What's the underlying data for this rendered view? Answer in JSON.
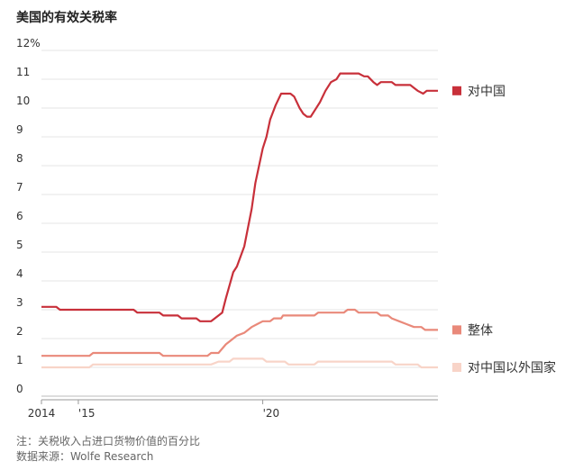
{
  "title": "美国的有效关税率",
  "notes": {
    "line1": "注：关税收入占进口货物价值的百分比",
    "line2": "数据来源：Wolfe Research"
  },
  "chart_data": {
    "type": "line",
    "title": "美国的有效关税率",
    "ylim": [
      0,
      12
    ],
    "xlim": [
      2014.0,
      2024.75
    ],
    "y_ticks": [
      0,
      1,
      2,
      3,
      4,
      5,
      6,
      7,
      8,
      9,
      10,
      11,
      12
    ],
    "y_tick_labels": [
      "0",
      "1",
      "2",
      "3",
      "4",
      "5",
      "6",
      "7",
      "8",
      "9",
      "10",
      "11",
      "12%"
    ],
    "x_ticks": [
      2014,
      2015,
      2020
    ],
    "x_tick_labels": [
      "2014",
      "'15",
      "'20"
    ],
    "grid": true,
    "legend": "right, at line ends",
    "series": [
      {
        "name": "对中国",
        "color": "#c8303a",
        "points": [
          [
            2014.0,
            3.1
          ],
          [
            2014.4,
            3.1
          ],
          [
            2014.5,
            3.0
          ],
          [
            2015.0,
            3.0
          ],
          [
            2016.0,
            3.0
          ],
          [
            2016.5,
            3.0
          ],
          [
            2016.6,
            2.9
          ],
          [
            2017.2,
            2.9
          ],
          [
            2017.3,
            2.8
          ],
          [
            2017.7,
            2.8
          ],
          [
            2017.8,
            2.7
          ],
          [
            2018.2,
            2.7
          ],
          [
            2018.3,
            2.6
          ],
          [
            2018.6,
            2.6
          ],
          [
            2018.9,
            2.9
          ],
          [
            2019.0,
            3.4
          ],
          [
            2019.2,
            4.3
          ],
          [
            2019.3,
            4.5
          ],
          [
            2019.5,
            5.2
          ],
          [
            2019.7,
            6.5
          ],
          [
            2019.8,
            7.4
          ],
          [
            2019.9,
            8.0
          ],
          [
            2020.0,
            8.6
          ],
          [
            2020.1,
            9.0
          ],
          [
            2020.2,
            9.6
          ],
          [
            2020.35,
            10.1
          ],
          [
            2020.5,
            10.5
          ],
          [
            2020.6,
            10.5
          ],
          [
            2020.75,
            10.5
          ],
          [
            2020.85,
            10.4
          ],
          [
            2021.0,
            10.0
          ],
          [
            2021.1,
            9.8
          ],
          [
            2021.2,
            9.7
          ],
          [
            2021.3,
            9.7
          ],
          [
            2021.4,
            9.9
          ],
          [
            2021.55,
            10.2
          ],
          [
            2021.7,
            10.6
          ],
          [
            2021.85,
            10.9
          ],
          [
            2022.0,
            11.0
          ],
          [
            2022.1,
            11.2
          ],
          [
            2022.3,
            11.2
          ],
          [
            2022.6,
            11.2
          ],
          [
            2022.75,
            11.1
          ],
          [
            2022.85,
            11.1
          ],
          [
            2023.0,
            10.9
          ],
          [
            2023.1,
            10.8
          ],
          [
            2023.2,
            10.9
          ],
          [
            2023.5,
            10.9
          ],
          [
            2023.6,
            10.8
          ],
          [
            2024.0,
            10.8
          ],
          [
            2024.1,
            10.7
          ],
          [
            2024.2,
            10.6
          ],
          [
            2024.35,
            10.5
          ],
          [
            2024.45,
            10.6
          ],
          [
            2024.75,
            10.6
          ]
        ]
      },
      {
        "name": "整体",
        "color": "#e9897a",
        "points": [
          [
            2014.0,
            1.4
          ],
          [
            2015.3,
            1.4
          ],
          [
            2015.4,
            1.5
          ],
          [
            2017.2,
            1.5
          ],
          [
            2017.3,
            1.4
          ],
          [
            2018.5,
            1.4
          ],
          [
            2018.6,
            1.5
          ],
          [
            2018.8,
            1.5
          ],
          [
            2019.0,
            1.8
          ],
          [
            2019.3,
            2.1
          ],
          [
            2019.5,
            2.2
          ],
          [
            2019.7,
            2.4
          ],
          [
            2019.85,
            2.5
          ],
          [
            2020.0,
            2.6
          ],
          [
            2020.2,
            2.6
          ],
          [
            2020.3,
            2.7
          ],
          [
            2020.5,
            2.7
          ],
          [
            2020.55,
            2.8
          ],
          [
            2021.4,
            2.8
          ],
          [
            2021.5,
            2.9
          ],
          [
            2022.2,
            2.9
          ],
          [
            2022.3,
            3.0
          ],
          [
            2022.5,
            3.0
          ],
          [
            2022.6,
            2.9
          ],
          [
            2023.1,
            2.9
          ],
          [
            2023.2,
            2.8
          ],
          [
            2023.4,
            2.8
          ],
          [
            2023.5,
            2.7
          ],
          [
            2023.7,
            2.6
          ],
          [
            2023.9,
            2.5
          ],
          [
            2024.1,
            2.4
          ],
          [
            2024.3,
            2.4
          ],
          [
            2024.4,
            2.3
          ],
          [
            2024.75,
            2.3
          ]
        ]
      },
      {
        "name": "对中国以外国家",
        "color": "#f8d4c8",
        "points": [
          [
            2014.0,
            1.0
          ],
          [
            2015.3,
            1.0
          ],
          [
            2015.4,
            1.1
          ],
          [
            2018.6,
            1.1
          ],
          [
            2018.8,
            1.2
          ],
          [
            2019.1,
            1.2
          ],
          [
            2019.2,
            1.3
          ],
          [
            2020.0,
            1.3
          ],
          [
            2020.1,
            1.2
          ],
          [
            2020.6,
            1.2
          ],
          [
            2020.7,
            1.1
          ],
          [
            2021.4,
            1.1
          ],
          [
            2021.5,
            1.2
          ],
          [
            2023.5,
            1.2
          ],
          [
            2023.6,
            1.1
          ],
          [
            2024.2,
            1.1
          ],
          [
            2024.3,
            1.0
          ],
          [
            2024.75,
            1.0
          ]
        ]
      }
    ]
  }
}
